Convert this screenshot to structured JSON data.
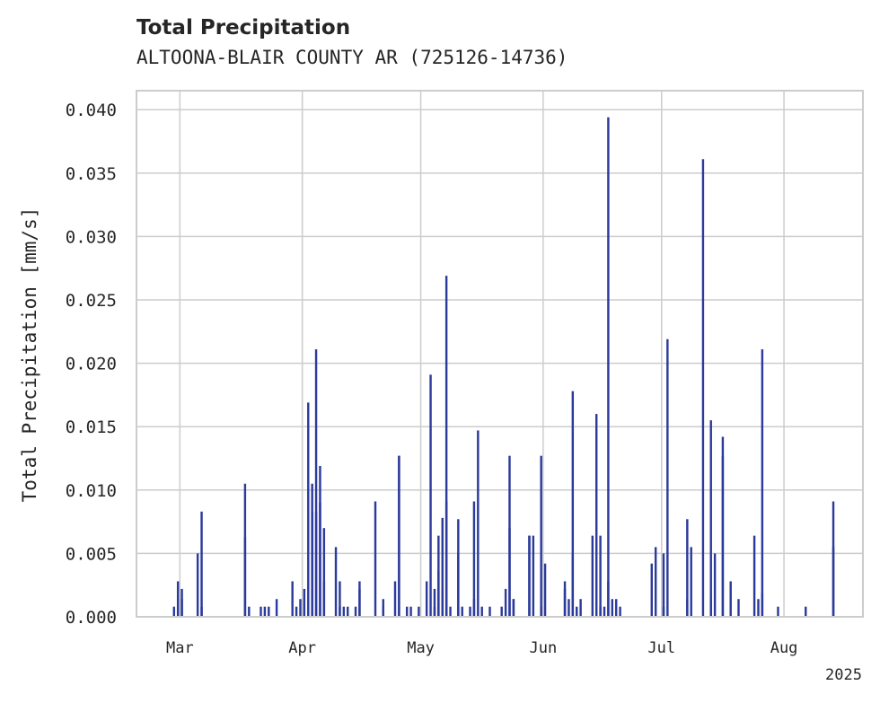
{
  "chart_data": {
    "type": "bar",
    "title": "Total Precipitation",
    "subtitle": "ALTOONA-BLAIR COUNTY AR (725126-14736)",
    "ylabel": "Total Precipitation [mm/s]",
    "xlabel": "",
    "ylim": [
      0,
      0.0415
    ],
    "xlim": [
      "2025-02-18",
      "2025-08-21"
    ],
    "y_ticks": [
      "0.000",
      "0.005",
      "0.010",
      "0.015",
      "0.020",
      "0.025",
      "0.030",
      "0.035",
      "0.040"
    ],
    "x_ticks": [
      {
        "label": "Mar",
        "date": "2025-03-01"
      },
      {
        "label": "Apr",
        "date": "2025-04-01"
      },
      {
        "label": "May",
        "date": "2025-05-01"
      },
      {
        "label": "Jun",
        "date": "2025-06-01"
      },
      {
        "label": "Jul",
        "date": "2025-07-01"
      },
      {
        "label": "Aug",
        "date": "2025-08-01"
      }
    ],
    "year_label": "2025",
    "grid": true,
    "bar_color": "#2b3a9b",
    "points": [
      [
        "2025-02-27",
        0.0008
      ],
      [
        "2025-02-28",
        0.0028
      ],
      [
        "2025-03-01",
        0.0014
      ],
      [
        "2025-03-01",
        0.0022
      ],
      [
        "2025-03-05",
        0.005
      ],
      [
        "2025-03-06",
        0.0083
      ],
      [
        "2025-03-06",
        0.0008
      ],
      [
        "2025-03-17",
        0.0063
      ],
      [
        "2025-03-17",
        0.0105
      ],
      [
        "2025-03-18",
        0.0008
      ],
      [
        "2025-03-21",
        0.0008
      ],
      [
        "2025-03-22",
        0.0008
      ],
      [
        "2025-03-23",
        0.0008
      ],
      [
        "2025-03-25",
        0.0014
      ],
      [
        "2025-03-29",
        0.0028
      ],
      [
        "2025-03-30",
        0.0008
      ],
      [
        "2025-03-31",
        0.0014
      ],
      [
        "2025-04-01",
        0.0022
      ],
      [
        "2025-04-02",
        0.0169
      ],
      [
        "2025-04-03",
        0.0083
      ],
      [
        "2025-04-03",
        0.0105
      ],
      [
        "2025-04-04",
        0.0083
      ],
      [
        "2025-04-04",
        0.0211
      ],
      [
        "2025-04-05",
        0.0119
      ],
      [
        "2025-04-05",
        0.009
      ],
      [
        "2025-04-06",
        0.007
      ],
      [
        "2025-04-06",
        0.0028
      ],
      [
        "2025-04-09",
        0.0055
      ],
      [
        "2025-04-10",
        0.0028
      ],
      [
        "2025-04-10",
        0.0008
      ],
      [
        "2025-04-11",
        0.0008
      ],
      [
        "2025-04-12",
        0.0008
      ],
      [
        "2025-04-14",
        0.0008
      ],
      [
        "2025-04-15",
        0.0028
      ],
      [
        "2025-04-15",
        0.0022
      ],
      [
        "2025-04-19",
        0.0091
      ],
      [
        "2025-04-21",
        0.0014
      ],
      [
        "2025-04-21",
        0.0008
      ],
      [
        "2025-04-24",
        0.0028
      ],
      [
        "2025-04-25",
        0.0127
      ],
      [
        "2025-04-25",
        0.0127
      ],
      [
        "2025-04-27",
        0.0008
      ],
      [
        "2025-04-28",
        0.0008
      ],
      [
        "2025-04-30",
        0.0008
      ],
      [
        "2025-05-02",
        0.0028
      ],
      [
        "2025-05-03",
        0.0191
      ],
      [
        "2025-05-04",
        0.0008
      ],
      [
        "2025-05-04",
        0.0022
      ],
      [
        "2025-05-05",
        0.0036
      ],
      [
        "2025-05-05",
        0.0064
      ],
      [
        "2025-05-06",
        0.0022
      ],
      [
        "2025-05-06",
        0.0078
      ],
      [
        "2025-05-07",
        0.0091
      ],
      [
        "2025-05-07",
        0.0269
      ],
      [
        "2025-05-08",
        0.0008
      ],
      [
        "2025-05-10",
        0.0077
      ],
      [
        "2025-05-10",
        0.005
      ],
      [
        "2025-05-11",
        0.0008
      ],
      [
        "2025-05-13",
        0.0008
      ],
      [
        "2025-05-14",
        0.0014
      ],
      [
        "2025-05-14",
        0.0091
      ],
      [
        "2025-05-15",
        0.0147
      ],
      [
        "2025-05-16",
        0.0008
      ],
      [
        "2025-05-18",
        0.0008
      ],
      [
        "2025-05-21",
        0.0008
      ],
      [
        "2025-05-22",
        0.0022
      ],
      [
        "2025-05-23",
        0.0127
      ],
      [
        "2025-05-23",
        0.007
      ],
      [
        "2025-05-24",
        0.0014
      ],
      [
        "2025-05-24",
        0.0014
      ],
      [
        "2025-05-28",
        0.0064
      ],
      [
        "2025-05-28",
        0.0064
      ],
      [
        "2025-05-29",
        0.0064
      ],
      [
        "2025-05-31",
        0.0008
      ],
      [
        "2025-05-31",
        0.0127
      ],
      [
        "2025-06-01",
        0.0042
      ],
      [
        "2025-06-06",
        0.0022
      ],
      [
        "2025-06-06",
        0.0028
      ],
      [
        "2025-06-07",
        0.0014
      ],
      [
        "2025-06-08",
        0.0178
      ],
      [
        "2025-06-08",
        0.005
      ],
      [
        "2025-06-09",
        0.0008
      ],
      [
        "2025-06-10",
        0.0014
      ],
      [
        "2025-06-13",
        0.0064
      ],
      [
        "2025-06-14",
        0.016
      ],
      [
        "2025-06-15",
        0.0008
      ],
      [
        "2025-06-15",
        0.0064
      ],
      [
        "2025-06-16",
        0.0008
      ],
      [
        "2025-06-17",
        0.0028
      ],
      [
        "2025-06-17",
        0.0394
      ],
      [
        "2025-06-18",
        0.0014
      ],
      [
        "2025-06-19",
        0.0014
      ],
      [
        "2025-06-20",
        0.0008
      ],
      [
        "2025-06-28",
        0.0042
      ],
      [
        "2025-06-29",
        0.0055
      ],
      [
        "2025-07-01",
        0.0008
      ],
      [
        "2025-07-01",
        0.005
      ],
      [
        "2025-07-02",
        0.0219
      ],
      [
        "2025-07-07",
        0.0014
      ],
      [
        "2025-07-07",
        0.0077
      ],
      [
        "2025-07-08",
        0.0055
      ],
      [
        "2025-07-11",
        0.0361
      ],
      [
        "2025-07-13",
        0.0014
      ],
      [
        "2025-07-13",
        0.0155
      ],
      [
        "2025-07-14",
        0.005
      ],
      [
        "2025-07-16",
        0.0127
      ],
      [
        "2025-07-16",
        0.0142
      ],
      [
        "2025-07-18",
        0.0028
      ],
      [
        "2025-07-20",
        0.0014
      ],
      [
        "2025-07-24",
        0.0064
      ],
      [
        "2025-07-25",
        0.0014
      ],
      [
        "2025-07-26",
        0.0211
      ],
      [
        "2025-07-26",
        0.0019
      ],
      [
        "2025-07-30",
        0.0008
      ],
      [
        "2025-08-06",
        0.0008
      ],
      [
        "2025-08-13",
        0.0055
      ],
      [
        "2025-08-13",
        0.0091
      ]
    ]
  }
}
